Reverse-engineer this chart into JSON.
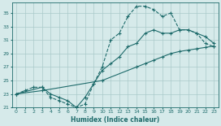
{
  "xlabel": "Humidex (Indice chaleur)",
  "bg_color": "#d6eaea",
  "grid_color": "#aacaca",
  "line_color": "#1e6b6b",
  "xlim": [
    -0.5,
    23.5
  ],
  "ylim": [
    21,
    36.5
  ],
  "xticks": [
    0,
    1,
    2,
    3,
    4,
    5,
    6,
    7,
    8,
    9,
    10,
    11,
    12,
    13,
    14,
    15,
    16,
    17,
    18,
    19,
    20,
    21,
    22,
    23
  ],
  "yticks": [
    21,
    23,
    25,
    27,
    29,
    31,
    33,
    35
  ],
  "line1_x": [
    0,
    1,
    2,
    3,
    4,
    5,
    6,
    7,
    8,
    9,
    10,
    11,
    12,
    13,
    14,
    15,
    16,
    17,
    18,
    19,
    20,
    21,
    22,
    23
  ],
  "line1_y": [
    23.0,
    23.5,
    24.0,
    24.0,
    22.5,
    22.0,
    21.5,
    21.0,
    21.5,
    24.5,
    27.0,
    31.0,
    32.0,
    34.5,
    36.0,
    36.0,
    35.5,
    34.5,
    35.0,
    32.5,
    32.5,
    32.0,
    30.5,
    30.0
  ],
  "line2_x": [
    0,
    3,
    10,
    14,
    15,
    16,
    17,
    18,
    19,
    20,
    21,
    22,
    23
  ],
  "line2_y": [
    23.0,
    23.5,
    25.0,
    27.0,
    27.5,
    28.0,
    28.5,
    29.0,
    29.3,
    29.5,
    29.7,
    29.9,
    30.1
  ],
  "line3_x": [
    0,
    3,
    4,
    5,
    6,
    7,
    8,
    9,
    10,
    11,
    12,
    13,
    14,
    15,
    16,
    17,
    18,
    19,
    20,
    21,
    22,
    23
  ],
  "line3_y": [
    23.0,
    24.0,
    23.0,
    22.5,
    22.0,
    21.0,
    22.5,
    24.5,
    26.5,
    27.5,
    28.5,
    30.0,
    30.5,
    32.0,
    32.5,
    32.0,
    32.0,
    32.5,
    32.5,
    32.0,
    31.5,
    30.5
  ]
}
